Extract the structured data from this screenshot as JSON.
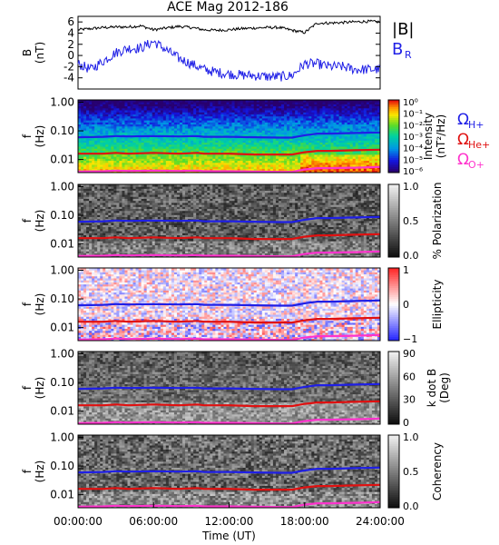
{
  "title": "ACE Mag 2012-186",
  "colors": {
    "bmag": "#000000",
    "br": "#1f1fe6",
    "h": "#1f1fe6",
    "he": "#e01010",
    "o": "#ff33cc"
  },
  "chart_data": [
    {
      "type": "line",
      "panel": "field",
      "ylabel": "B (nT)",
      "ylabel_lines": [
        "B",
        "(nT)"
      ],
      "ylim": [
        -6,
        7
      ],
      "yticks": [
        "6",
        "4",
        "2",
        "0",
        "-2",
        "-4"
      ],
      "ytick_values": [
        6,
        4,
        2,
        0,
        -2,
        -4
      ],
      "x_hours": [
        0,
        1,
        2,
        3,
        4,
        5,
        6,
        7,
        8,
        9,
        10,
        11,
        12,
        13,
        14,
        15,
        16,
        17,
        18,
        19,
        20,
        21,
        22,
        23,
        24
      ],
      "series": [
        {
          "name": "|B|",
          "values": [
            4.6,
            4.8,
            5.0,
            5.1,
            5.1,
            5.3,
            4.6,
            4.9,
            5.2,
            5.0,
            4.6,
            4.5,
            4.6,
            4.8,
            4.9,
            5.0,
            5.0,
            4.5,
            4.1,
            5.8,
            5.8,
            5.9,
            6.0,
            6.1,
            6.0
          ]
        },
        {
          "name": "B",
          "sub": "R",
          "values": [
            -1.5,
            -2.5,
            -1.0,
            0.5,
            1.3,
            1.3,
            2.5,
            1.0,
            -0.5,
            -1.5,
            -2.5,
            -3.0,
            -3.3,
            -3.5,
            -3.6,
            -3.8,
            -3.8,
            -3.6,
            -1.5,
            -1.5,
            -2.0,
            -2.0,
            -2.5,
            -2.5,
            -2.5
          ]
        }
      ]
    },
    {
      "type": "heatmap",
      "panel": "intensity",
      "ylabel_lines": [
        "f",
        "(Hz)"
      ],
      "yticks": [
        "1.00",
        "0.10",
        "0.01"
      ],
      "ytick_values": [
        1.0,
        0.1,
        0.01
      ],
      "cbar_label": "Intensity (nT²/Hz)",
      "cbar_label_lines": [
        "Intensity",
        "(nT²/Hz)"
      ],
      "cbar_ticks": [
        "10⁰",
        "10⁻¹",
        "10⁻²",
        "10⁻³",
        "10⁻⁴",
        "10⁻⁵",
        "10⁻⁶"
      ],
      "legend": [
        {
          "label": "Ω",
          "sub": "H+",
          "key": "h"
        },
        {
          "label": "Ω",
          "sub": "He+",
          "key": "he"
        },
        {
          "label": "Ω",
          "sub": "O+",
          "key": "o"
        }
      ]
    },
    {
      "type": "heatmap",
      "panel": "polarization",
      "ylabel_lines": [
        "f",
        "(Hz)"
      ],
      "yticks": [
        "1.00",
        "0.10",
        "0.01"
      ],
      "ytick_values": [
        1.0,
        0.1,
        0.01
      ],
      "cbar_label": "% Polarization",
      "cbar_ticks": [
        "1.0",
        "0.5",
        "0.0"
      ]
    },
    {
      "type": "heatmap",
      "panel": "ellipticity",
      "ylabel_lines": [
        "f",
        "(Hz)"
      ],
      "yticks": [
        "1.00",
        "0.10",
        "0.01"
      ],
      "ytick_values": [
        1.0,
        0.1,
        0.01
      ],
      "cbar_label": "Ellipticity",
      "cbar_ticks": [
        "1",
        "0",
        "−1"
      ]
    },
    {
      "type": "heatmap",
      "panel": "kdotb",
      "ylabel_lines": [
        "f",
        "(Hz)"
      ],
      "yticks": [
        "1.00",
        "0.10",
        "0.01"
      ],
      "ytick_values": [
        1.0,
        0.1,
        0.01
      ],
      "cbar_label": "k dot B (Deg)",
      "cbar_label_lines": [
        "k dot B",
        "(Deg)"
      ],
      "cbar_ticks": [
        "90",
        "60",
        "30",
        "0"
      ]
    },
    {
      "type": "heatmap",
      "panel": "coherency",
      "ylabel_lines": [
        "f",
        "(Hz)"
      ],
      "yticks": [
        "1.00",
        "0.10",
        "0.01"
      ],
      "ytick_values": [
        1.0,
        0.1,
        0.01
      ],
      "cbar_label": "Coherency",
      "cbar_ticks": [
        "1.0",
        "0.5",
        "0.0"
      ]
    }
  ],
  "gyro": {
    "x_hours": [
      0,
      2,
      3,
      4,
      6,
      8,
      9.5,
      10,
      12,
      14,
      16,
      17,
      18,
      19,
      20,
      22,
      24
    ],
    "h": [
      0.06,
      0.062,
      0.066,
      0.064,
      0.066,
      0.064,
      0.066,
      0.062,
      0.062,
      0.06,
      0.058,
      0.058,
      0.07,
      0.08,
      0.08,
      0.084,
      0.088
    ],
    "he": [
      0.016,
      0.016,
      0.017,
      0.016,
      0.017,
      0.016,
      0.017,
      0.016,
      0.016,
      0.015,
      0.015,
      0.015,
      0.018,
      0.02,
      0.02,
      0.021,
      0.022
    ],
    "o": [
      0.0038,
      0.0039,
      0.0041,
      0.004,
      0.0041,
      0.004,
      0.0041,
      0.0039,
      0.0039,
      0.0038,
      0.0037,
      0.0037,
      0.0045,
      0.005,
      0.005,
      0.0052,
      0.0055
    ]
  },
  "xaxis": {
    "label": "Time (UT)",
    "ticks": [
      "00:00:00",
      "06:00:00",
      "12:00:00",
      "18:00:00",
      "24:00:00"
    ],
    "tick_hours": [
      0,
      6,
      12,
      18,
      24
    ]
  }
}
